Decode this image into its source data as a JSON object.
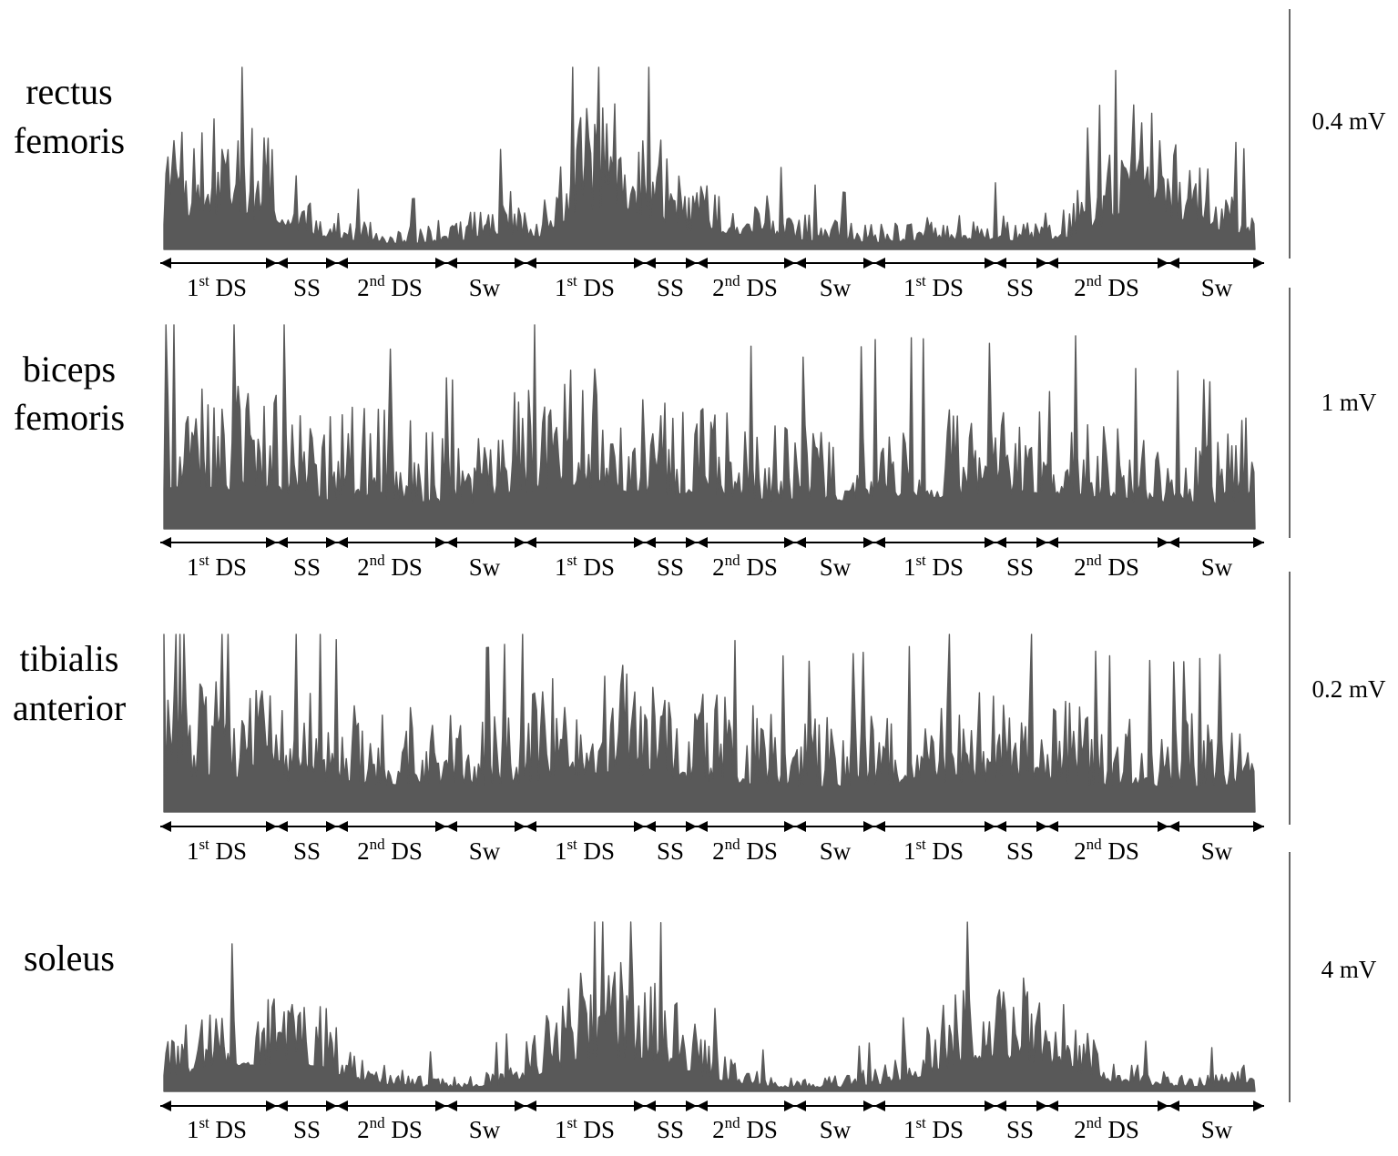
{
  "colors": {
    "trace": "#595959",
    "axis": "#000000",
    "background": "#ffffff"
  },
  "chart_data": [
    {
      "type": "area",
      "series": [
        {
          "name": "rectus femoris"
        }
      ],
      "muscle_lines": [
        "rectus",
        "femoris"
      ],
      "scale_label": "0.4 mV",
      "scale_value_mV": 0.4,
      "activity_profile": [
        0.55,
        0.78,
        0.72,
        0.58,
        0.3,
        0.18,
        0.12,
        0.14,
        0.2,
        0.34,
        0.26,
        0.82,
        0.95,
        0.65,
        0.42,
        0.34,
        0.3,
        0.2,
        0.16,
        0.14,
        0.18,
        0.2,
        0.2,
        0.17,
        0.26,
        0.55,
        0.9,
        0.65,
        0.42,
        0.3
      ],
      "phases": [
        {
          "base": "1",
          "sup": "st",
          "suffix": " DS"
        },
        {
          "base": "SS",
          "sup": "",
          "suffix": ""
        },
        {
          "base": "2",
          "sup": "nd",
          "suffix": " DS"
        },
        {
          "base": "Sw",
          "sup": "",
          "suffix": ""
        },
        {
          "base": "1",
          "sup": "st",
          "suffix": " DS"
        },
        {
          "base": "SS",
          "sup": "",
          "suffix": ""
        },
        {
          "base": "2",
          "sup": "nd",
          "suffix": " DS"
        },
        {
          "base": "Sw",
          "sup": "",
          "suffix": ""
        },
        {
          "base": "1",
          "sup": "st",
          "suffix": " DS"
        },
        {
          "base": "SS",
          "sup": "",
          "suffix": ""
        },
        {
          "base": "2",
          "sup": "nd",
          "suffix": " DS"
        },
        {
          "base": "Sw",
          "sup": "",
          "suffix": ""
        }
      ]
    },
    {
      "type": "area",
      "series": [
        {
          "name": "biceps femoris"
        }
      ],
      "muscle_lines": [
        "biceps",
        "femoris"
      ],
      "scale_label": "1 mV",
      "scale_value_mV": 1,
      "activity_profile": [
        0.75,
        0.8,
        0.75,
        0.7,
        0.55,
        0.6,
        0.58,
        0.5,
        0.45,
        0.62,
        0.78,
        0.82,
        0.75,
        0.65,
        0.7,
        0.65,
        0.55,
        0.55,
        0.55,
        0.62,
        0.62,
        0.6,
        0.6,
        0.7,
        0.65,
        0.55,
        0.5,
        0.5,
        0.45,
        0.68
      ],
      "phases": [
        {
          "base": "1",
          "sup": "st",
          "suffix": " DS"
        },
        {
          "base": "SS",
          "sup": "",
          "suffix": ""
        },
        {
          "base": "2",
          "sup": "nd",
          "suffix": " DS"
        },
        {
          "base": "Sw",
          "sup": "",
          "suffix": ""
        },
        {
          "base": "1",
          "sup": "st",
          "suffix": " DS"
        },
        {
          "base": "SS",
          "sup": "",
          "suffix": ""
        },
        {
          "base": "2",
          "sup": "nd",
          "suffix": " DS"
        },
        {
          "base": "Sw",
          "sup": "",
          "suffix": ""
        },
        {
          "base": "1",
          "sup": "st",
          "suffix": " DS"
        },
        {
          "base": "SS",
          "sup": "",
          "suffix": ""
        },
        {
          "base": "2",
          "sup": "nd",
          "suffix": " DS"
        },
        {
          "base": "Sw",
          "sup": "",
          "suffix": ""
        }
      ]
    },
    {
      "type": "area",
      "series": [
        {
          "name": "tibialis anterior"
        }
      ],
      "muscle_lines": [
        "tibialis",
        "anterior"
      ],
      "scale_label": "0.2 mV",
      "scale_value_mV": 0.2,
      "activity_profile": [
        0.75,
        0.78,
        0.78,
        0.72,
        0.68,
        0.62,
        0.6,
        0.58,
        0.6,
        0.62,
        0.72,
        0.82,
        0.9,
        0.78,
        0.7,
        0.65,
        0.6,
        0.55,
        0.58,
        0.6,
        0.62,
        0.68,
        0.7,
        0.72,
        0.65,
        0.58,
        0.56,
        0.55,
        0.58,
        0.62
      ],
      "phases": [
        {
          "base": "1",
          "sup": "st",
          "suffix": " DS"
        },
        {
          "base": "SS",
          "sup": "",
          "suffix": ""
        },
        {
          "base": "2",
          "sup": "nd",
          "suffix": " DS"
        },
        {
          "base": "Sw",
          "sup": "",
          "suffix": ""
        },
        {
          "base": "1",
          "sup": "st",
          "suffix": " DS"
        },
        {
          "base": "SS",
          "sup": "",
          "suffix": ""
        },
        {
          "base": "2",
          "sup": "nd",
          "suffix": " DS"
        },
        {
          "base": "Sw",
          "sup": "",
          "suffix": ""
        },
        {
          "base": "1",
          "sup": "st",
          "suffix": " DS"
        },
        {
          "base": "SS",
          "sup": "",
          "suffix": ""
        },
        {
          "base": "2",
          "sup": "nd",
          "suffix": " DS"
        },
        {
          "base": "Sw",
          "sup": "",
          "suffix": ""
        }
      ]
    },
    {
      "type": "area",
      "series": [
        {
          "name": "soleus"
        }
      ],
      "muscle_lines": [
        "soleus"
      ],
      "scale_label": "4 mV",
      "scale_value_mV": 4,
      "activity_profile": [
        0.35,
        0.45,
        0.6,
        0.62,
        0.6,
        0.25,
        0.15,
        0.1,
        0.08,
        0.15,
        0.4,
        0.7,
        0.8,
        0.72,
        0.45,
        0.2,
        0.1,
        0.08,
        0.1,
        0.15,
        0.3,
        0.62,
        0.75,
        0.7,
        0.55,
        0.25,
        0.15,
        0.1,
        0.12,
        0.2
      ],
      "phases": [
        {
          "base": "1",
          "sup": "st",
          "suffix": " DS"
        },
        {
          "base": "SS",
          "sup": "",
          "suffix": ""
        },
        {
          "base": "2",
          "sup": "nd",
          "suffix": " DS"
        },
        {
          "base": "Sw",
          "sup": "",
          "suffix": ""
        },
        {
          "base": "1",
          "sup": "st",
          "suffix": " DS"
        },
        {
          "base": "SS",
          "sup": "",
          "suffix": ""
        },
        {
          "base": "2",
          "sup": "nd",
          "suffix": " DS"
        },
        {
          "base": "Sw",
          "sup": "",
          "suffix": ""
        },
        {
          "base": "1",
          "sup": "st",
          "suffix": " DS"
        },
        {
          "base": "SS",
          "sup": "",
          "suffix": ""
        },
        {
          "base": "2",
          "sup": "nd",
          "suffix": " DS"
        },
        {
          "base": "Sw",
          "sup": "",
          "suffix": ""
        }
      ]
    }
  ]
}
